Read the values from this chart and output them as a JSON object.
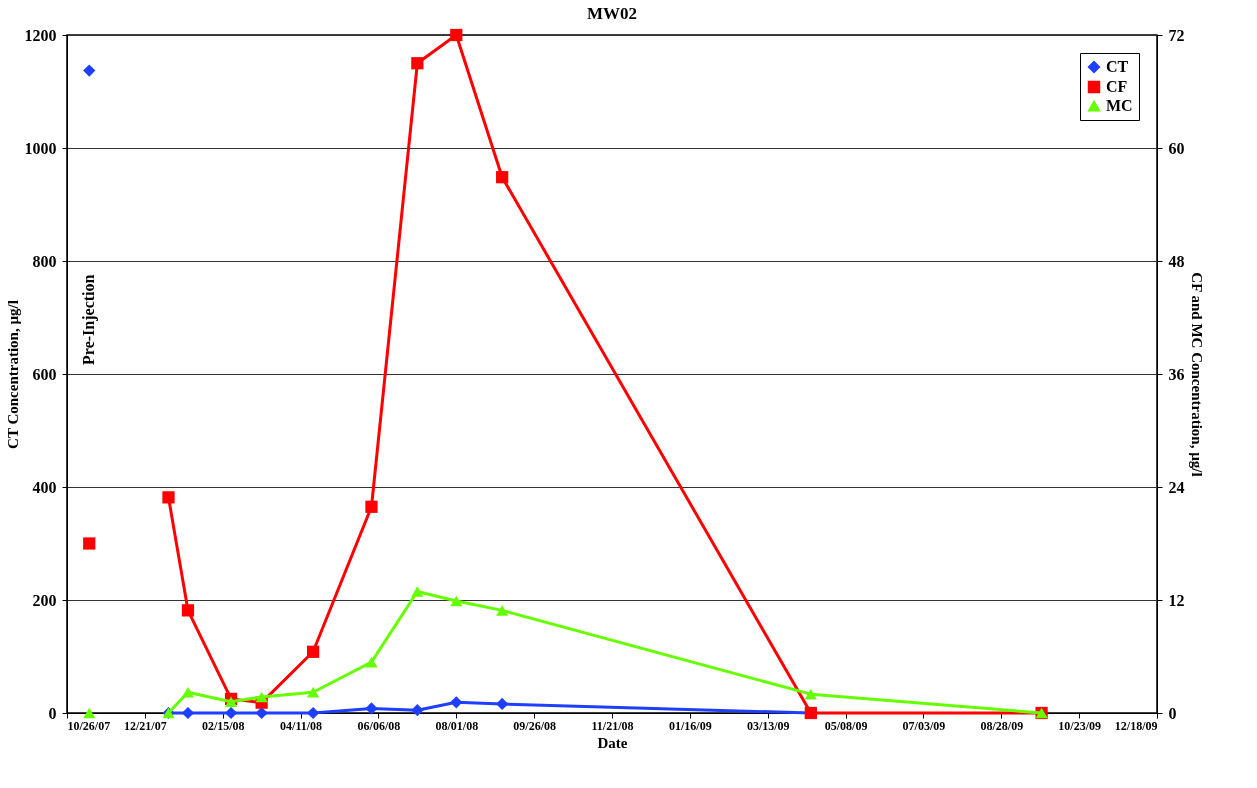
{
  "chart_data": {
    "type": "line",
    "title": "MW02",
    "xlabel": "Date",
    "ylabel": "CT Concentration, µg/l",
    "y2label": "CF and MC Concentration, µg/l",
    "x": [
      "2007-11-11",
      "2007-12-10",
      "2008-01-07",
      "2008-01-21",
      "2008-02-21",
      "2008-03-14",
      "2008-04-20",
      "2008-06-01",
      "2008-07-04",
      "2008-08-01",
      "2008-09-03",
      "2009-04-13",
      "2009-09-26"
    ],
    "series": [
      {
        "name": "CT",
        "color": "#1f3fff",
        "marker": "diamond",
        "values": [
          1137,
          null,
          0,
          0,
          0,
          0,
          0,
          8,
          5,
          19,
          16,
          0,
          null
        ]
      },
      {
        "name": "CF",
        "color": "#ff0000",
        "marker": "square",
        "axis": "y2",
        "values": [
          18,
          null,
          22.9,
          10.9,
          1.5,
          1.1,
          6.5,
          21.9,
          69,
          72,
          56.9,
          0,
          0
        ]
      },
      {
        "name": "MC",
        "color": "#66ff00",
        "marker": "triangle",
        "axis": "y2",
        "values": [
          0,
          null,
          0,
          2.2,
          1.2,
          1.7,
          2.2,
          5.4,
          12.9,
          11.9,
          10.9,
          2,
          0
        ]
      }
    ],
    "xlim": [
      "2007-10-26",
      "2009-12-18"
    ],
    "xticks": [
      {
        "value": "2007-10-26",
        "label": "10/26/07"
      },
      {
        "value": "2007-12-21",
        "label": "12/21/07"
      },
      {
        "value": "2008-02-15",
        "label": "02/15/08"
      },
      {
        "value": "2008-04-11",
        "label": "04/11/08"
      },
      {
        "value": "2008-06-06",
        "label": "06/06/08"
      },
      {
        "value": "2008-08-01",
        "label": "08/01/08"
      },
      {
        "value": "2008-09-26",
        "label": "09/26/08"
      },
      {
        "value": "2008-11-21",
        "label": "11/21/08"
      },
      {
        "value": "2009-01-16",
        "label": "01/16/09"
      },
      {
        "value": "2009-03-13",
        "label": "03/13/09"
      },
      {
        "value": "2009-05-08",
        "label": "05/08/09"
      },
      {
        "value": "2009-07-03",
        "label": "07/03/09"
      },
      {
        "value": "2009-08-28",
        "label": "08/28/09"
      },
      {
        "value": "2009-10-23",
        "label": "10/23/09"
      },
      {
        "value": "2009-12-18",
        "label": "12/18/09"
      }
    ],
    "ylim": [
      0,
      1200
    ],
    "yticks": [
      0,
      200,
      400,
      600,
      800,
      1000,
      1200
    ],
    "y2lim": [
      0,
      72
    ],
    "y2ticks": [
      0,
      12,
      24,
      36,
      48,
      60,
      72
    ],
    "annotations": [
      "Pre-Injection"
    ],
    "grid": "y",
    "legend": "top right"
  }
}
